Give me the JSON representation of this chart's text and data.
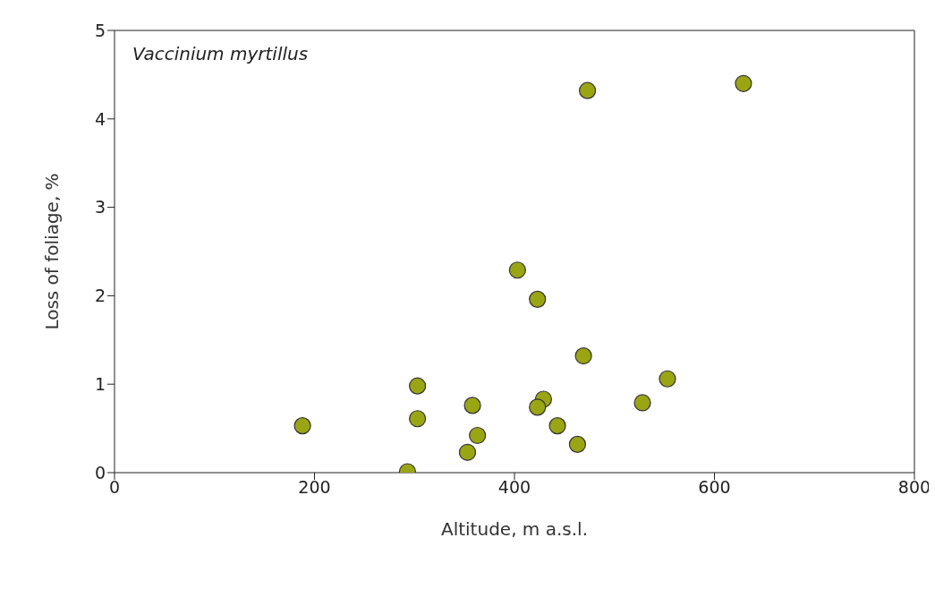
{
  "chart_data": {
    "type": "scatter",
    "xlabel": "Altitude, m a.s.l.",
    "ylabel": "Loss of foliage, %",
    "annotations": [
      "Vaccinium myrtillus"
    ],
    "x": [
      188,
      293,
      303,
      303,
      353,
      358,
      363,
      403,
      423,
      429,
      423,
      443,
      463,
      469,
      473,
      528,
      553,
      629
    ],
    "series": [
      {
        "color": "#9aa514",
        "values": [
          0.53,
          0.01,
          0.98,
          0.61,
          0.23,
          0.76,
          0.42,
          2.29,
          1.96,
          0.83,
          0.74,
          0.53,
          0.32,
          1.32,
          4.32,
          0.79,
          1.06,
          4.4
        ]
      }
    ],
    "xlim": [
      0,
      800
    ],
    "xticks": [
      0,
      200,
      400,
      600,
      800
    ],
    "ylim": [
      0,
      5
    ],
    "yticks": [
      0,
      1,
      2,
      3,
      4,
      5
    ],
    "marker": "circle",
    "grid": false,
    "legend": false
  }
}
